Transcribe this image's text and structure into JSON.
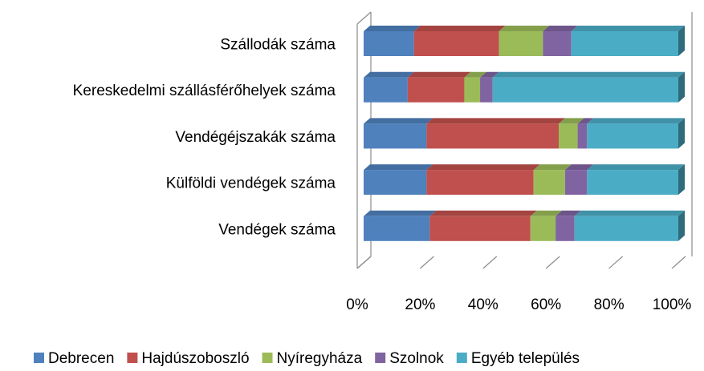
{
  "chart_data": {
    "type": "bar",
    "orientation": "horizontal",
    "stacked": "percent",
    "categories": [
      "Szállodák száma",
      "Kereskedelmi szállásférőhelyek száma",
      "Vendégéjszakák száma",
      "Külföldi vendégek száma",
      "Vendégek száma"
    ],
    "series": [
      {
        "name": "Debrecen",
        "color": "#4f81bd",
        "values": [
          16,
          14,
          20,
          20,
          21
        ]
      },
      {
        "name": "Hajdúszoboszló",
        "color": "#c0504d",
        "values": [
          27,
          18,
          42,
          34,
          32
        ]
      },
      {
        "name": "Nyíregyháza",
        "color": "#9bbb59",
        "values": [
          14,
          5,
          6,
          10,
          8
        ]
      },
      {
        "name": "Szolnok",
        "color": "#8064a2",
        "values": [
          9,
          4,
          3,
          7,
          6
        ]
      },
      {
        "name": "Egyéb település",
        "color": "#4bacc6",
        "values": [
          34,
          59,
          29,
          29,
          33
        ]
      }
    ],
    "xlim": [
      0,
      100
    ],
    "xticks": [
      {
        "value": 0,
        "label": "0%"
      },
      {
        "value": 20,
        "label": "20%"
      },
      {
        "value": 40,
        "label": "40%"
      },
      {
        "value": 60,
        "label": "60%"
      },
      {
        "value": 80,
        "label": "80%"
      },
      {
        "value": 100,
        "label": "100%"
      }
    ],
    "legend": "bottom"
  }
}
